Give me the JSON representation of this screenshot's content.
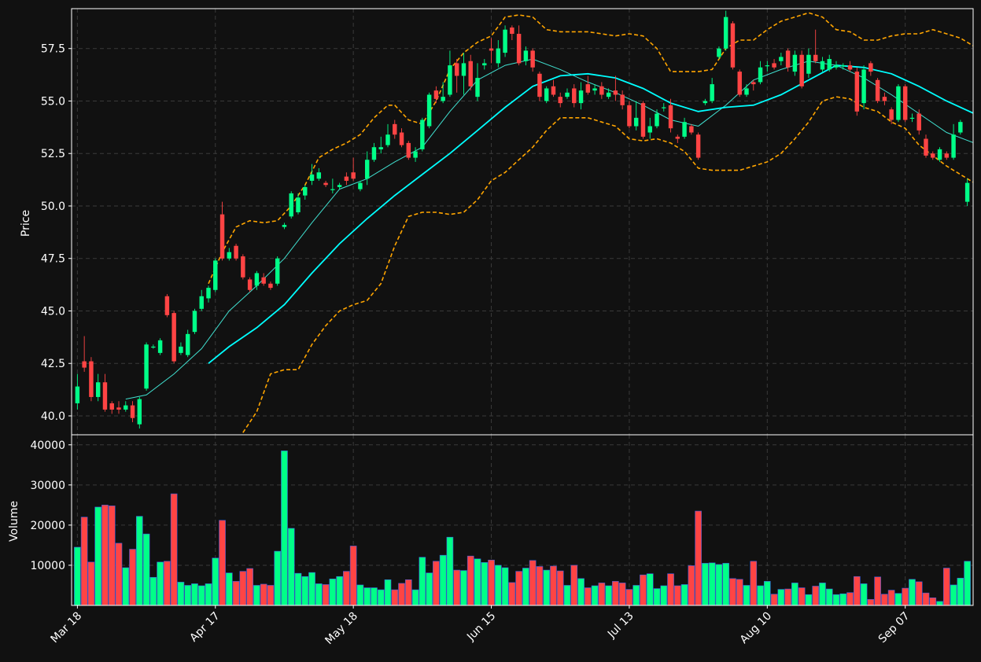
{
  "chart_data": {
    "type": "candlestick",
    "price_axis": {
      "label": "Price",
      "ticks": [
        "40.0",
        "42.5",
        "45.0",
        "47.5",
        "50.0",
        "52.5",
        "55.0",
        "57.5"
      ],
      "ylim": [
        39.1,
        59.4
      ]
    },
    "volume_axis": {
      "label": "Volume",
      "ticks": [
        "10000",
        "20000",
        "30000",
        "40000"
      ],
      "ylim": [
        0,
        42500
      ]
    },
    "x_ticks": [
      {
        "label": "Mar 18",
        "index": 0
      },
      {
        "label": "Apr 17",
        "index": 20
      },
      {
        "label": "May 18",
        "index": 40
      },
      {
        "label": "Jun 15",
        "index": 60
      },
      {
        "label": "Jul 13",
        "index": 80
      },
      {
        "label": "Aug 10",
        "index": 100
      },
      {
        "label": "Sep 07",
        "index": 120
      }
    ],
    "grid": true,
    "colors": {
      "up": "#00ff88",
      "down": "#ff4444",
      "background": "#111111",
      "grid": "#3a3a3a",
      "ma_short": "#40e0d0",
      "ma_long": "#00ffff",
      "bands": "#ffa500",
      "frame": "#ffffff"
    },
    "bars": [
      [
        40.6,
        41.4,
        40.3,
        42.0,
        14500
      ],
      [
        42.6,
        42.3,
        42.1,
        43.8,
        22000
      ],
      [
        42.6,
        40.9,
        40.7,
        42.8,
        10800
      ],
      [
        40.9,
        41.6,
        40.7,
        42.0,
        24500
      ],
      [
        41.6,
        40.3,
        40.2,
        42.0,
        25000
      ],
      [
        40.6,
        40.3,
        40.1,
        40.7,
        24800
      ],
      [
        40.4,
        40.3,
        40.1,
        40.7,
        15500
      ],
      [
        40.3,
        40.5,
        40.2,
        40.7,
        9400
      ],
      [
        40.5,
        39.9,
        39.7,
        40.7,
        14000
      ],
      [
        39.6,
        40.8,
        39.4,
        40.9,
        22200
      ],
      [
        41.3,
        43.4,
        41.2,
        43.5,
        17800
      ],
      [
        43.3,
        43.3,
        43.2,
        43.4,
        7000
      ],
      [
        43.0,
        43.6,
        42.9,
        43.7,
        10800
      ],
      [
        45.7,
        44.8,
        44.7,
        45.8,
        11000
      ],
      [
        44.9,
        42.6,
        42.5,
        45.0,
        27800
      ],
      [
        43.0,
        43.3,
        42.9,
        43.5,
        5800
      ],
      [
        42.9,
        43.9,
        42.8,
        44.1,
        5000
      ],
      [
        44.0,
        45.0,
        43.9,
        45.1,
        5400
      ],
      [
        45.1,
        45.7,
        45.0,
        46.0,
        4900
      ],
      [
        45.6,
        46.1,
        45.4,
        46.2,
        5400
      ],
      [
        46.0,
        47.4,
        45.9,
        47.5,
        11800
      ],
      [
        49.6,
        47.5,
        47.4,
        50.2,
        21200
      ],
      [
        47.5,
        47.8,
        47.4,
        48.0,
        8100
      ],
      [
        48.1,
        47.5,
        47.4,
        48.2,
        6000
      ],
      [
        47.6,
        46.6,
        46.5,
        47.7,
        8500
      ],
      [
        46.5,
        46.0,
        45.9,
        46.6,
        9200
      ],
      [
        46.2,
        46.8,
        46.0,
        46.9,
        5000
      ],
      [
        46.6,
        46.3,
        46.2,
        46.8,
        5300
      ],
      [
        46.3,
        46.1,
        46.0,
        46.4,
        5000
      ],
      [
        46.3,
        47.5,
        46.2,
        47.6,
        13500
      ],
      [
        49.0,
        49.1,
        48.9,
        49.2,
        38500
      ],
      [
        49.5,
        50.6,
        49.4,
        50.7,
        19200
      ],
      [
        49.7,
        50.4,
        49.6,
        50.6,
        8000
      ],
      [
        50.5,
        50.9,
        50.3,
        51.0,
        7200
      ],
      [
        51.2,
        51.5,
        51.0,
        52.0,
        8200
      ],
      [
        51.3,
        51.6,
        51.2,
        51.8,
        5400
      ],
      [
        51.1,
        51.0,
        50.9,
        51.2,
        5200
      ],
      [
        50.8,
        50.8,
        50.6,
        51.3,
        6600
      ],
      [
        50.9,
        51.0,
        50.8,
        51.1,
        7200
      ],
      [
        51.4,
        51.2,
        51.0,
        51.6,
        8500
      ],
      [
        51.6,
        51.3,
        51.2,
        52.3,
        14800
      ],
      [
        50.8,
        51.1,
        50.7,
        51.2,
        5100
      ],
      [
        51.3,
        52.2,
        51.0,
        52.6,
        4400
      ],
      [
        52.2,
        52.8,
        52.1,
        53.0,
        4400
      ],
      [
        52.7,
        52.8,
        52.5,
        53.3,
        3900
      ],
      [
        52.9,
        53.4,
        52.8,
        53.9,
        6400
      ],
      [
        53.9,
        53.4,
        53.2,
        54.1,
        3900
      ],
      [
        53.5,
        52.9,
        52.8,
        53.7,
        5500
      ],
      [
        53.0,
        52.3,
        52.2,
        53.1,
        6400
      ],
      [
        52.3,
        52.6,
        52.1,
        52.8,
        3900
      ],
      [
        52.7,
        54.1,
        52.6,
        54.2,
        12000
      ],
      [
        53.8,
        55.3,
        53.7,
        55.4,
        8100
      ],
      [
        55.5,
        55.1,
        54.9,
        55.7,
        11000
      ],
      [
        55.0,
        55.2,
        54.9,
        55.9,
        12500
      ],
      [
        55.3,
        56.7,
        55.2,
        57.4,
        17000
      ],
      [
        56.8,
        56.2,
        55.4,
        57.0,
        8800
      ],
      [
        56.2,
        56.8,
        55.3,
        57.3,
        8700
      ],
      [
        56.9,
        55.7,
        55.5,
        57.2,
        12300
      ],
      [
        55.2,
        56.1,
        55.0,
        56.8,
        11600
      ],
      [
        56.7,
        56.8,
        56.5,
        57.0,
        10700
      ],
      [
        57.5,
        57.4,
        56.8,
        58.0,
        11300
      ],
      [
        56.8,
        57.5,
        56.6,
        57.9,
        10000
      ],
      [
        57.3,
        58.4,
        57.1,
        58.6,
        9400
      ],
      [
        58.5,
        58.2,
        57.9,
        58.6,
        5700
      ],
      [
        58.2,
        56.8,
        56.7,
        58.6,
        8500
      ],
      [
        56.9,
        57.4,
        56.7,
        57.6,
        9300
      ],
      [
        57.4,
        56.6,
        56.4,
        57.5,
        11200
      ],
      [
        56.3,
        55.2,
        55.0,
        56.4,
        9700
      ],
      [
        55.0,
        55.6,
        54.9,
        55.7,
        8800
      ],
      [
        55.7,
        55.3,
        55.2,
        56.0,
        9800
      ],
      [
        55.2,
        54.9,
        54.7,
        55.4,
        8600
      ],
      [
        55.2,
        55.4,
        55.1,
        55.6,
        5000
      ],
      [
        55.6,
        54.9,
        54.7,
        55.8,
        10000
      ],
      [
        54.9,
        55.5,
        54.6,
        55.9,
        6700
      ],
      [
        55.8,
        55.4,
        55.3,
        56.2,
        4400
      ],
      [
        55.5,
        55.6,
        55.3,
        55.8,
        4900
      ],
      [
        55.7,
        55.3,
        55.1,
        55.9,
        5600
      ],
      [
        55.2,
        55.4,
        55.1,
        55.6,
        4900
      ],
      [
        55.5,
        55.3,
        55.0,
        56.2,
        6000
      ],
      [
        55.3,
        54.8,
        54.6,
        55.5,
        5600
      ],
      [
        54.8,
        53.8,
        53.7,
        55.0,
        4000
      ],
      [
        53.8,
        54.2,
        53.6,
        55.0,
        5000
      ],
      [
        54.9,
        53.3,
        53.2,
        55.0,
        7600
      ],
      [
        53.5,
        53.8,
        53.2,
        54.2,
        7900
      ],
      [
        53.8,
        54.4,
        53.7,
        54.6,
        4200
      ],
      [
        54.7,
        54.7,
        54.5,
        54.9,
        4900
      ],
      [
        54.8,
        53.7,
        53.5,
        55.1,
        7900
      ],
      [
        53.3,
        53.2,
        53.0,
        53.4,
        4900
      ],
      [
        53.3,
        54.0,
        53.2,
        54.2,
        5200
      ],
      [
        53.8,
        53.5,
        53.4,
        53.9,
        9900
      ],
      [
        53.4,
        52.3,
        52.2,
        53.5,
        23500
      ],
      [
        54.9,
        55.0,
        54.8,
        55.1,
        10500
      ],
      [
        55.0,
        55.8,
        54.9,
        56.1,
        10600
      ],
      [
        57.1,
        57.5,
        57.0,
        57.6,
        10200
      ],
      [
        57.5,
        59.0,
        57.4,
        59.3,
        10500
      ],
      [
        58.7,
        56.6,
        56.5,
        58.8,
        6700
      ],
      [
        56.4,
        55.3,
        55.2,
        56.5,
        6500
      ],
      [
        55.3,
        55.6,
        55.2,
        55.8,
        5000
      ],
      [
        55.9,
        55.8,
        55.5,
        56.0,
        11000
      ],
      [
        55.9,
        56.6,
        55.8,
        56.9,
        4900
      ],
      [
        56.7,
        56.7,
        56.4,
        56.9,
        6000
      ],
      [
        56.8,
        56.6,
        56.5,
        57.0,
        2800
      ],
      [
        56.9,
        57.1,
        56.7,
        57.3,
        4000
      ],
      [
        57.4,
        56.6,
        56.4,
        57.5,
        4100
      ],
      [
        56.4,
        57.2,
        56.2,
        57.4,
        5600
      ],
      [
        57.2,
        55.7,
        55.6,
        57.4,
        4400
      ],
      [
        56.3,
        57.2,
        56.1,
        57.5,
        2700
      ],
      [
        57.2,
        56.9,
        56.8,
        58.4,
        4800
      ],
      [
        56.5,
        56.9,
        56.4,
        57.1,
        5600
      ],
      [
        56.5,
        57.0,
        56.4,
        57.2,
        4100
      ],
      [
        56.6,
        56.7,
        56.5,
        56.9,
        2700
      ],
      [
        56.7,
        56.7,
        56.5,
        56.8,
        2900
      ],
      [
        56.7,
        56.5,
        56.4,
        56.9,
        3200
      ],
      [
        56.4,
        54.5,
        54.3,
        56.6,
        7200
      ],
      [
        54.9,
        56.5,
        54.6,
        56.7,
        5400
      ],
      [
        56.8,
        56.4,
        56.2,
        56.9,
        1500
      ],
      [
        56.0,
        55.0,
        54.9,
        56.1,
        7100
      ],
      [
        55.2,
        55.0,
        54.8,
        55.4,
        2800
      ],
      [
        54.6,
        54.1,
        53.9,
        54.7,
        3800
      ],
      [
        54.1,
        55.7,
        54.0,
        55.8,
        3000
      ],
      [
        55.7,
        54.1,
        54.0,
        55.8,
        4300
      ],
      [
        54.2,
        54.2,
        54.0,
        54.4,
        6500
      ],
      [
        54.4,
        53.6,
        53.4,
        54.6,
        5900
      ],
      [
        53.2,
        52.4,
        52.3,
        53.4,
        3100
      ],
      [
        52.5,
        52.3,
        52.2,
        52.6,
        1900
      ],
      [
        52.2,
        52.7,
        52.1,
        52.8,
        1000
      ],
      [
        52.5,
        52.3,
        52.2,
        52.6,
        9300
      ],
      [
        52.3,
        53.4,
        52.2,
        53.9,
        5100
      ],
      [
        53.5,
        54.0,
        53.4,
        54.1,
        6800
      ],
      [
        50.2,
        51.1,
        50.0,
        51.3,
        11000
      ]
    ],
    "ma_short": [
      [
        7,
        40.8
      ],
      [
        10,
        41.0
      ],
      [
        14,
        42.0
      ],
      [
        18,
        43.2
      ],
      [
        22,
        45.0
      ],
      [
        26,
        46.2
      ],
      [
        30,
        47.5
      ],
      [
        34,
        49.2
      ],
      [
        38,
        50.8
      ],
      [
        42,
        51.3
      ],
      [
        46,
        52.1
      ],
      [
        50,
        52.8
      ],
      [
        54,
        54.5
      ],
      [
        58,
        56.0
      ],
      [
        62,
        56.7
      ],
      [
        66,
        57.0
      ],
      [
        70,
        56.5
      ],
      [
        74,
        55.9
      ],
      [
        78,
        55.4
      ],
      [
        82,
        54.8
      ],
      [
        86,
        54.1
      ],
      [
        90,
        53.8
      ],
      [
        94,
        54.8
      ],
      [
        98,
        56.0
      ],
      [
        102,
        56.5
      ],
      [
        106,
        56.9
      ],
      [
        110,
        56.7
      ],
      [
        114,
        56.1
      ],
      [
        118,
        55.3
      ],
      [
        122,
        54.4
      ],
      [
        126,
        53.5
      ],
      [
        130,
        53.0
      ]
    ],
    "ma_long": [
      [
        19,
        42.5
      ],
      [
        22,
        43.3
      ],
      [
        26,
        44.2
      ],
      [
        30,
        45.3
      ],
      [
        34,
        46.8
      ],
      [
        38,
        48.2
      ],
      [
        42,
        49.4
      ],
      [
        46,
        50.5
      ],
      [
        50,
        51.5
      ],
      [
        54,
        52.5
      ],
      [
        58,
        53.6
      ],
      [
        62,
        54.7
      ],
      [
        66,
        55.7
      ],
      [
        70,
        56.2
      ],
      [
        74,
        56.3
      ],
      [
        78,
        56.1
      ],
      [
        82,
        55.6
      ],
      [
        86,
        54.9
      ],
      [
        90,
        54.5
      ],
      [
        94,
        54.7
      ],
      [
        98,
        54.8
      ],
      [
        102,
        55.3
      ],
      [
        106,
        56.0
      ],
      [
        110,
        56.7
      ],
      [
        114,
        56.6
      ],
      [
        118,
        56.3
      ],
      [
        122,
        55.7
      ],
      [
        126,
        55.0
      ],
      [
        130,
        54.4
      ]
    ],
    "band_upper": [
      [
        19,
        46.3
      ],
      [
        21,
        47.8
      ],
      [
        23,
        49.0
      ],
      [
        25,
        49.3
      ],
      [
        27,
        49.2
      ],
      [
        29,
        49.3
      ],
      [
        31,
        50.0
      ],
      [
        33,
        51.0
      ],
      [
        35,
        52.3
      ],
      [
        37,
        52.7
      ],
      [
        39,
        53.0
      ],
      [
        41,
        53.4
      ],
      [
        43,
        54.2
      ],
      [
        45,
        54.8
      ],
      [
        46,
        54.8
      ],
      [
        48,
        54.1
      ],
      [
        50,
        53.9
      ],
      [
        52,
        55.0
      ],
      [
        54,
        56.5
      ],
      [
        56,
        57.3
      ],
      [
        58,
        57.8
      ],
      [
        60,
        58.1
      ],
      [
        62,
        59.0
      ],
      [
        64,
        59.1
      ],
      [
        66,
        59.0
      ],
      [
        68,
        58.4
      ],
      [
        70,
        58.3
      ],
      [
        74,
        58.3
      ],
      [
        76,
        58.2
      ],
      [
        78,
        58.1
      ],
      [
        80,
        58.2
      ],
      [
        82,
        58.1
      ],
      [
        84,
        57.5
      ],
      [
        86,
        56.4
      ],
      [
        88,
        56.4
      ],
      [
        90,
        56.4
      ],
      [
        92,
        56.5
      ],
      [
        94,
        57.5
      ],
      [
        96,
        57.9
      ],
      [
        98,
        57.9
      ],
      [
        100,
        58.4
      ],
      [
        102,
        58.8
      ],
      [
        104,
        59.0
      ],
      [
        106,
        59.2
      ],
      [
        108,
        59.0
      ],
      [
        110,
        58.4
      ],
      [
        112,
        58.3
      ],
      [
        114,
        57.9
      ],
      [
        116,
        57.9
      ],
      [
        118,
        58.1
      ],
      [
        120,
        58.2
      ],
      [
        122,
        58.2
      ],
      [
        124,
        58.4
      ],
      [
        126,
        58.2
      ],
      [
        128,
        58.0
      ],
      [
        130,
        57.6
      ]
    ],
    "band_lower": [
      [
        24,
        39.2
      ],
      [
        26,
        40.2
      ],
      [
        28,
        42.0
      ],
      [
        30,
        42.2
      ],
      [
        32,
        42.2
      ],
      [
        34,
        43.4
      ],
      [
        36,
        44.3
      ],
      [
        38,
        45.0
      ],
      [
        40,
        45.3
      ],
      [
        42,
        45.5
      ],
      [
        44,
        46.3
      ],
      [
        46,
        48.1
      ],
      [
        48,
        49.5
      ],
      [
        50,
        49.7
      ],
      [
        52,
        49.7
      ],
      [
        54,
        49.6
      ],
      [
        56,
        49.7
      ],
      [
        58,
        50.3
      ],
      [
        60,
        51.2
      ],
      [
        62,
        51.6
      ],
      [
        64,
        52.2
      ],
      [
        66,
        52.8
      ],
      [
        68,
        53.6
      ],
      [
        70,
        54.2
      ],
      [
        74,
        54.2
      ],
      [
        76,
        54.0
      ],
      [
        78,
        53.8
      ],
      [
        80,
        53.2
      ],
      [
        82,
        53.1
      ],
      [
        84,
        53.2
      ],
      [
        86,
        53.0
      ],
      [
        88,
        52.6
      ],
      [
        90,
        51.8
      ],
      [
        92,
        51.7
      ],
      [
        96,
        51.7
      ],
      [
        98,
        51.9
      ],
      [
        100,
        52.1
      ],
      [
        102,
        52.5
      ],
      [
        104,
        53.2
      ],
      [
        106,
        54.0
      ],
      [
        108,
        55.0
      ],
      [
        110,
        55.2
      ],
      [
        112,
        55.1
      ],
      [
        114,
        54.7
      ],
      [
        116,
        54.5
      ],
      [
        118,
        54.0
      ],
      [
        120,
        53.7
      ],
      [
        122,
        52.9
      ],
      [
        124,
        52.4
      ],
      [
        126,
        51.9
      ],
      [
        128,
        51.5
      ],
      [
        130,
        51.1
      ]
    ]
  }
}
